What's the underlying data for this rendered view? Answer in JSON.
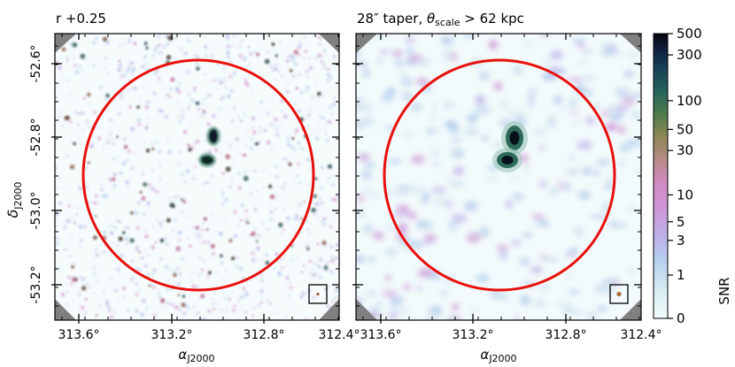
{
  "chart_data": [
    {
      "type": "heatmap",
      "title": "r +0.25",
      "xlabel": "αJ2000",
      "ylabel": "δJ2000",
      "x_ticks": [
        "313.6°",
        "313.2°",
        "312.8°",
        "312.4°"
      ],
      "y_ticks": [
        "-52.6°",
        "-52.8°",
        "-53.0°",
        "-53.2°"
      ],
      "annotations": {
        "circle_color": "#e8100c",
        "beam_box": true
      }
    },
    {
      "type": "heatmap",
      "title_main": "28″ taper, ",
      "title_symbol": "θ",
      "title_sub": "scale",
      "title_rest": " > 62 kpc",
      "xlabel": "αJ2000",
      "x_ticks": [
        "313.6°",
        "313.2°",
        "312.8°",
        "312.4°"
      ],
      "annotations": {
        "circle_color": "#e8100c",
        "beam_box": true
      }
    }
  ],
  "colorbar": {
    "label": "SNR",
    "ticks": [
      "500",
      "300",
      "100",
      "50",
      "30",
      "10",
      "5",
      "3",
      "1",
      "0"
    ],
    "tick_values": [
      500,
      300,
      100,
      50,
      30,
      10,
      5,
      3,
      1,
      0
    ],
    "range": [
      0,
      500
    ],
    "scale": "asinh-like",
    "colors": [
      "#f2fafa",
      "#c9e3ee",
      "#b6c6ec",
      "#c3a1e2",
      "#d38ccb",
      "#c07f96",
      "#9e7f62",
      "#6a7e46",
      "#2c6a56",
      "#123a4e",
      "#091026"
    ]
  },
  "axis_labels": {
    "alpha": "α",
    "alpha_sub": "J2000",
    "delta": "δ",
    "delta_sub": "J2000"
  },
  "colors": {
    "circle": "#e8100c",
    "corner_mask": "#808080"
  }
}
